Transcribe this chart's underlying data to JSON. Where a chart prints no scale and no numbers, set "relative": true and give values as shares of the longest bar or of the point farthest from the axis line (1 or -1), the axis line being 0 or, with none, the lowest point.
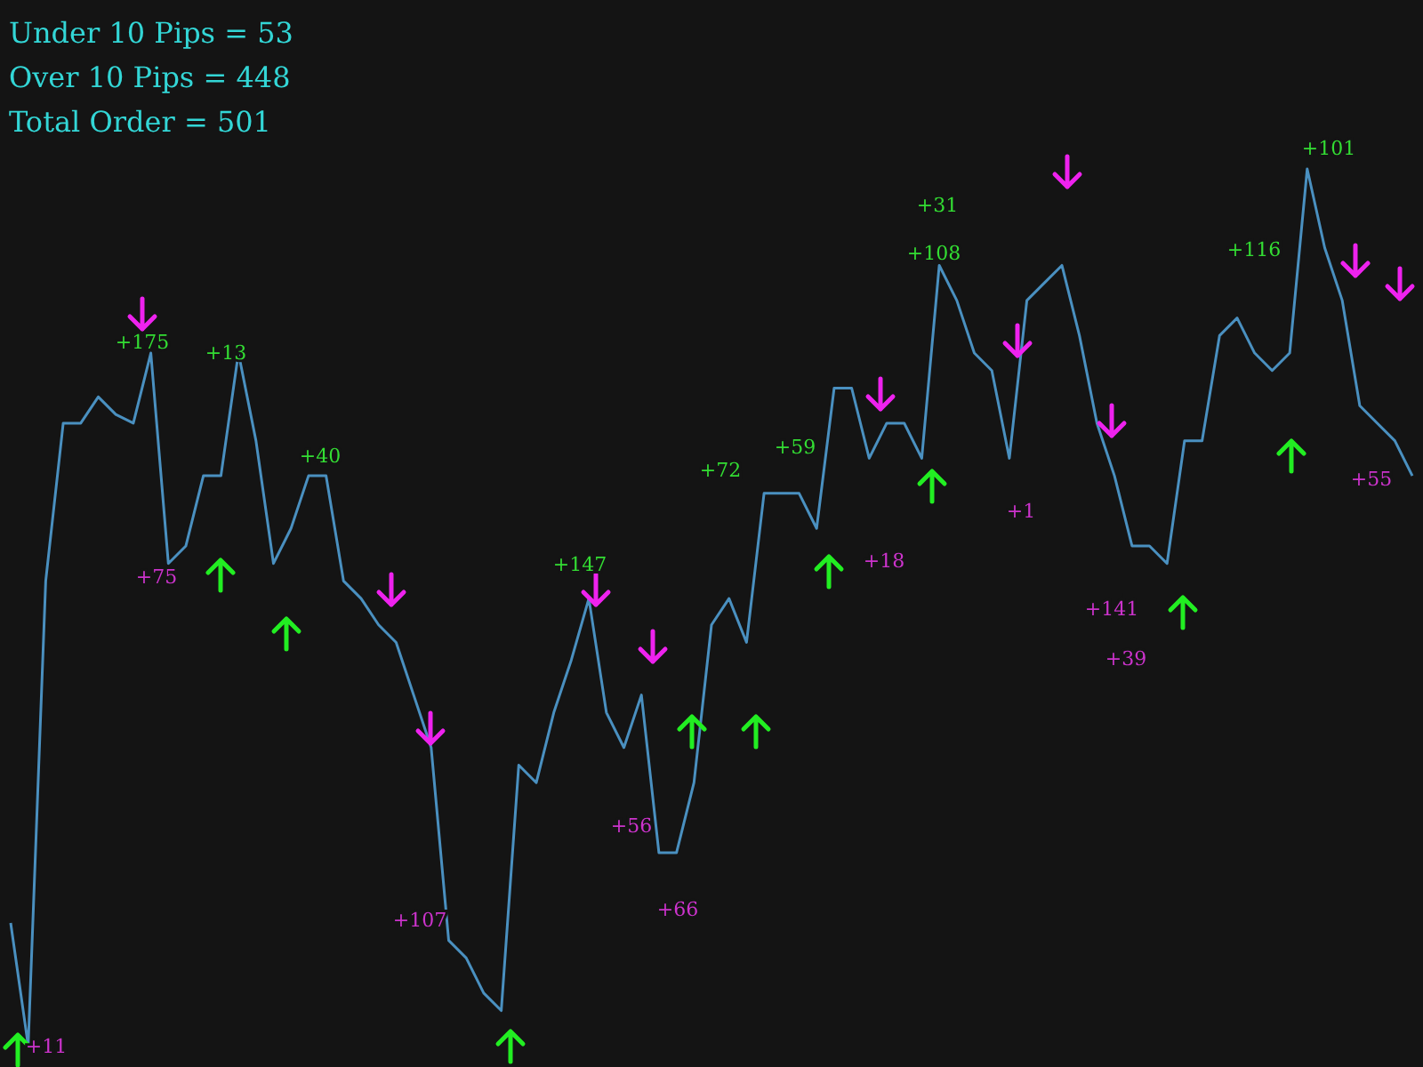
{
  "chart_data": {
    "type": "line",
    "relative": true,
    "annotations": [
      "Under 10 Pips = 53",
      "Over 10 Pips = 448",
      "Total Order = 501",
      "+175",
      "+13",
      "+40",
      "+147",
      "+72",
      "+59",
      "+31",
      "+108",
      "+116",
      "+101",
      "+11",
      "+75",
      "+107",
      "+56",
      "+66",
      "+18",
      "+1",
      "+141",
      "+39",
      "+55"
    ],
    "categories": [
      null,
      null,
      null,
      null,
      null,
      null,
      null,
      null,
      null,
      null,
      null,
      null,
      null,
      null,
      null,
      null,
      null,
      null,
      null,
      null,
      null,
      null,
      null,
      null,
      null,
      null,
      null,
      null,
      null,
      null,
      null,
      null,
      null,
      null,
      null,
      null,
      null,
      null,
      null,
      null,
      null,
      null,
      null,
      null,
      null,
      null,
      null,
      null,
      null,
      null,
      null,
      null,
      null,
      null,
      null,
      null,
      null,
      null,
      null,
      null,
      null,
      null,
      null,
      null,
      null,
      null,
      null,
      null,
      null,
      null,
      null,
      null,
      null,
      null,
      null,
      null,
      null,
      null,
      null,
      null,
      null
    ],
    "series": [
      {
        "color": "#4a90c0",
        "values": [
          0.14,
          0,
          0.53,
          0.71,
          0.71,
          0.74,
          0.72,
          0.71,
          0.79,
          0.55,
          0.57,
          0.65,
          0.65,
          0.79,
          0.69,
          0.55,
          0.59,
          0.65,
          0.65,
          0.53,
          0.51,
          0.48,
          0.46,
          0.4,
          0.34,
          0.12,
          0.1,
          0.06,
          0.04,
          0.32,
          0.3,
          0.38,
          0.44,
          0.51,
          0.38,
          0.34,
          0.4,
          0.22,
          0.22,
          0.3,
          0.48,
          0.51,
          0.46,
          0.63,
          0.63,
          0.63,
          0.59,
          0.75,
          0.75,
          0.67,
          0.71,
          0.71,
          0.67,
          0.89,
          0.85,
          0.79,
          0.77,
          0.67,
          0.85,
          0.87,
          0.89,
          0.81,
          0.71,
          0.65,
          0.57,
          0.57,
          0.55,
          0.69,
          0.69,
          0.81,
          0.83,
          0.79,
          0.77,
          0.79,
          1,
          0.91,
          0.85,
          0.73,
          0.71,
          0.69,
          0.65
        ]
      }
    ]
  }
}
